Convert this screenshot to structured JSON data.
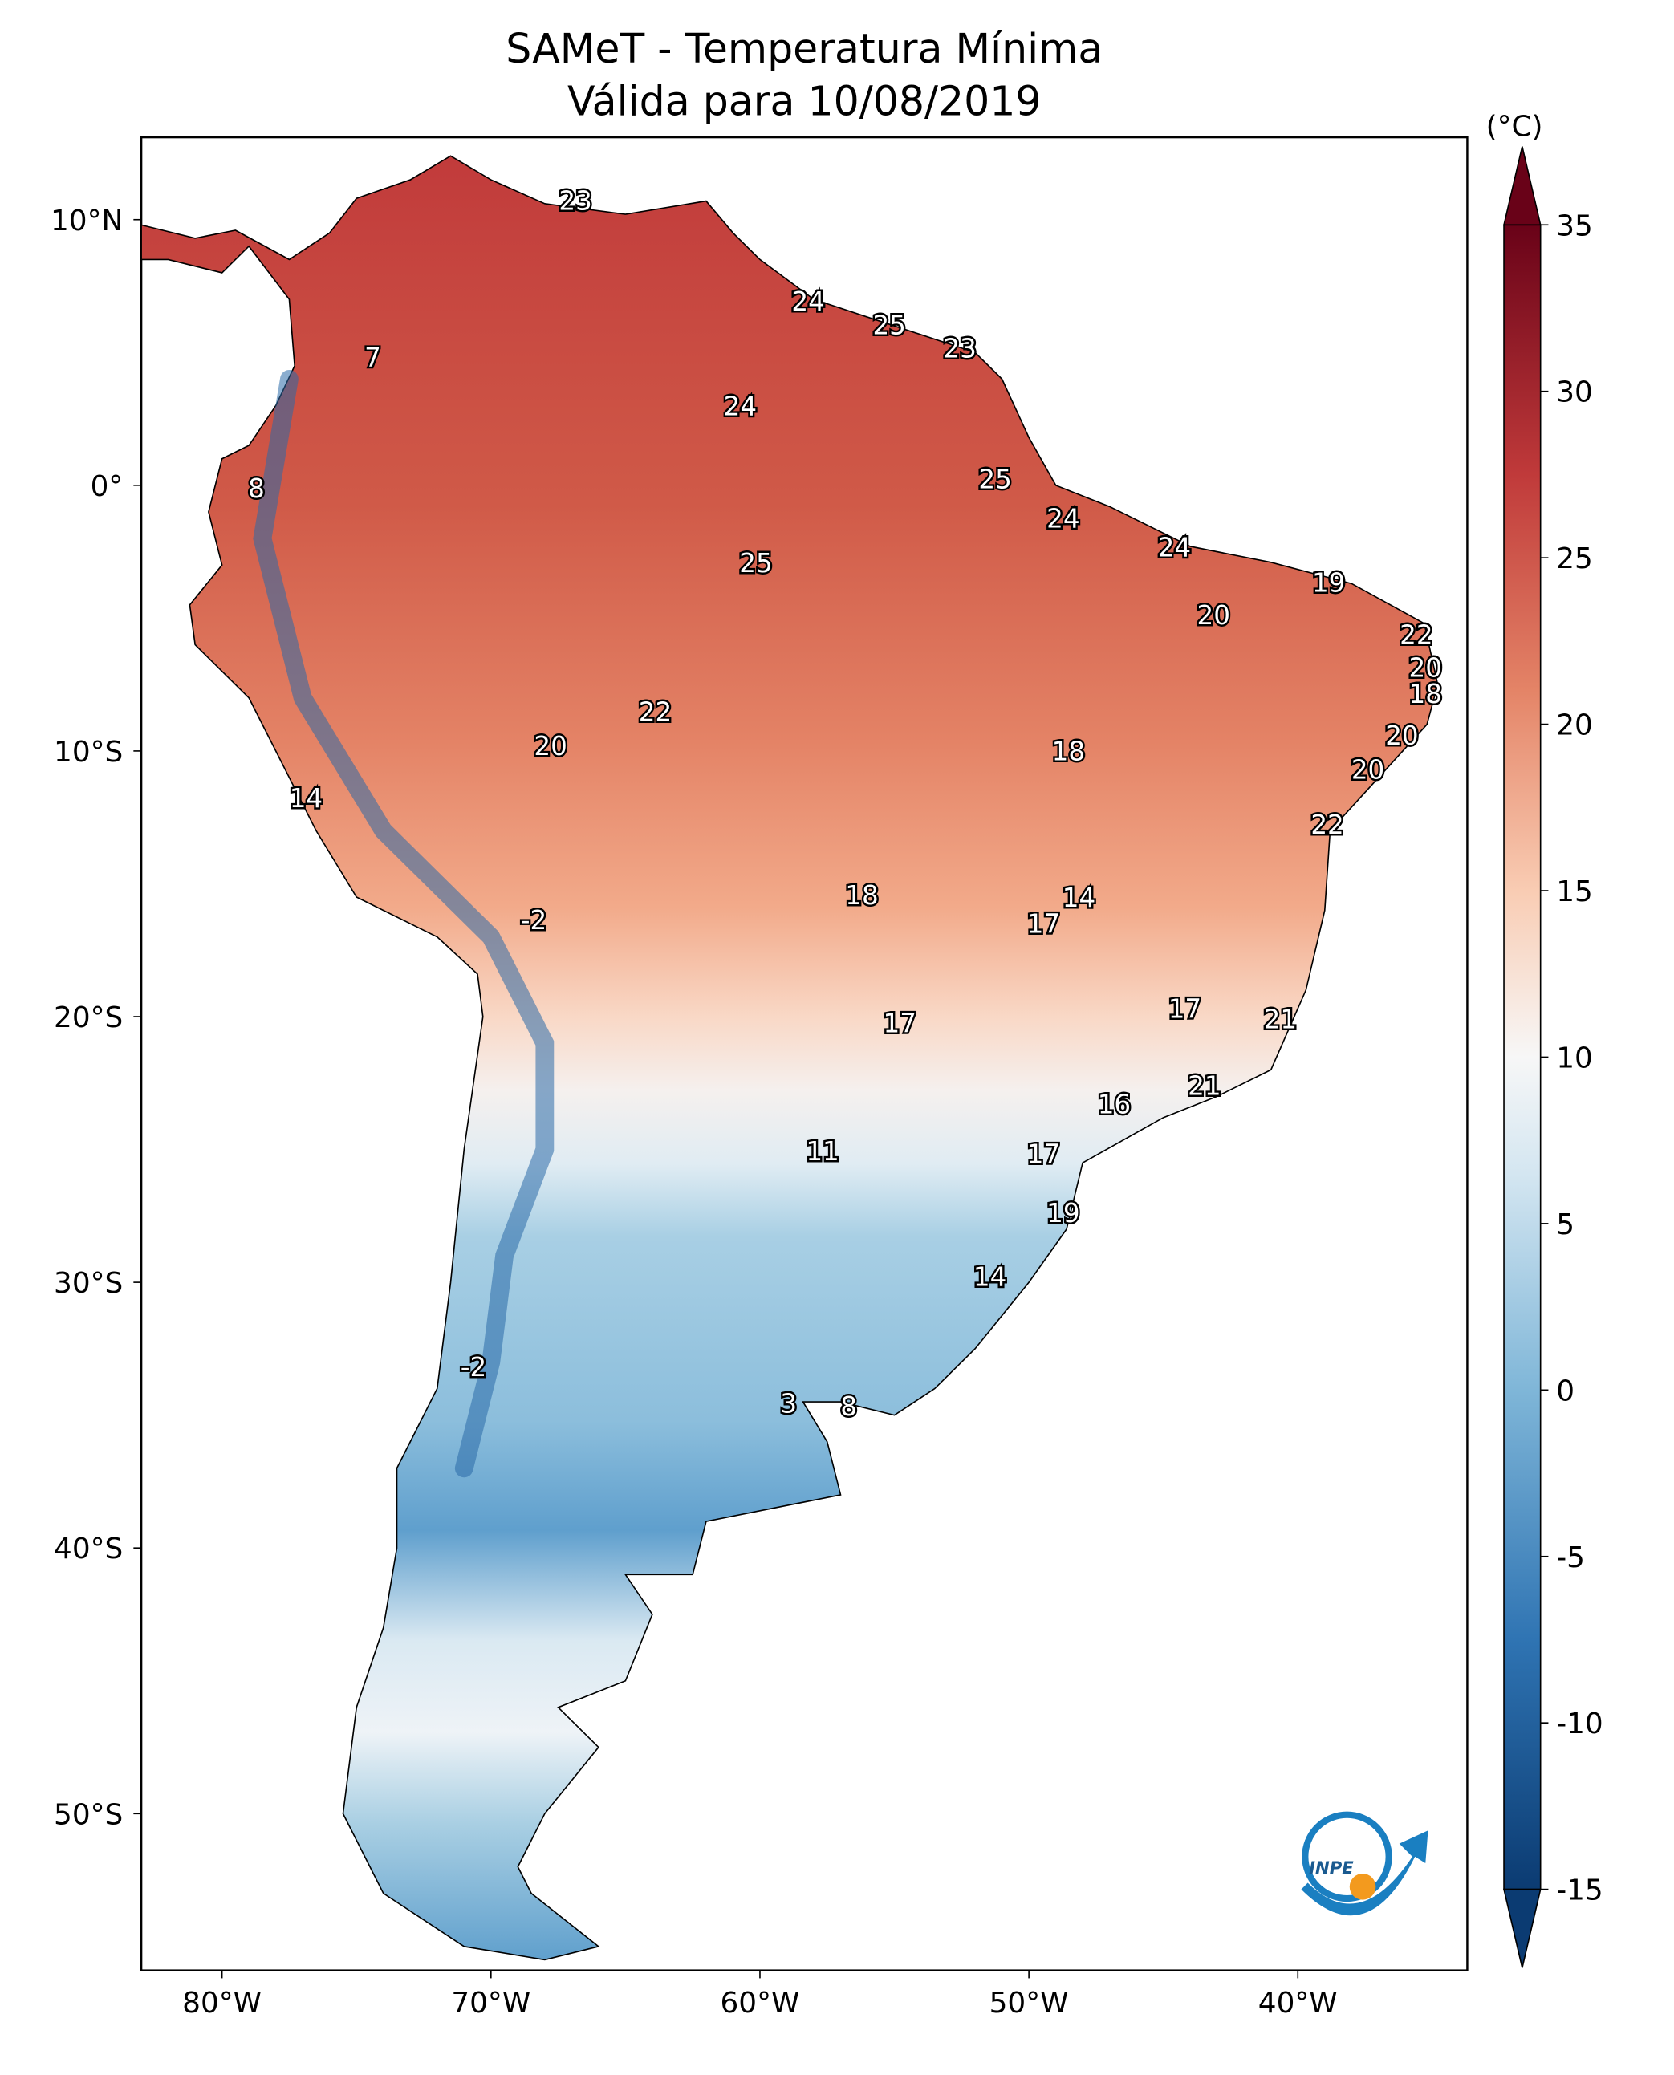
{
  "chart_data": {
    "type": "map",
    "title": [
      "SAMeT - Temperatura Mínima",
      "Válida para 10/08/2019"
    ],
    "xlim": [
      -83,
      -33.7
    ],
    "ylim": [
      -55.9,
      13.1
    ],
    "xticks": [
      {
        "value": -80,
        "label": "80°W"
      },
      {
        "value": -70,
        "label": "70°W"
      },
      {
        "value": -60,
        "label": "60°W"
      },
      {
        "value": -50,
        "label": "50°W"
      },
      {
        "value": -40,
        "label": "40°W"
      }
    ],
    "yticks": [
      {
        "value": 10,
        "label": "10°N"
      },
      {
        "value": 0,
        "label": "0°"
      },
      {
        "value": -10,
        "label": "10°S"
      },
      {
        "value": -20,
        "label": "20°S"
      },
      {
        "value": -30,
        "label": "30°S"
      },
      {
        "value": -40,
        "label": "40°S"
      },
      {
        "value": -50,
        "label": "50°S"
      }
    ],
    "colorbar": {
      "label": "(°C)",
      "lim": [
        -15,
        35
      ],
      "ticks": [
        -15,
        -10,
        -5,
        0,
        5,
        10,
        15,
        20,
        25,
        30,
        35
      ],
      "extend": "both"
    },
    "labels": [
      23,
      7,
      8,
      24,
      25,
      23,
      24,
      25,
      24,
      24,
      25,
      19,
      20,
      22,
      20,
      18,
      22,
      20,
      18,
      20,
      20,
      14,
      22,
      18,
      14,
      -2,
      17,
      17,
      17,
      21,
      21,
      16,
      11,
      17,
      19,
      14,
      -2,
      3,
      8
    ],
    "logo": "INPE"
  }
}
